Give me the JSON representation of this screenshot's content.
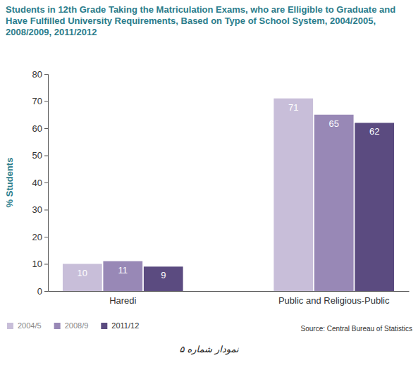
{
  "chart_data": {
    "type": "bar",
    "title": "Students in 12th Grade Taking the Matriculation Exams, who are Elligible to Graduate and Have Fulfilled University Requirements, Based on Type of School System, 2004/2005, 2008/2009, 2011/2012",
    "ylabel": "% Students",
    "categories": [
      "Haredi",
      "Public and Religious-Public"
    ],
    "series": [
      {
        "name": "2004/5",
        "color": "#c8bed9",
        "values": [
          10,
          71
        ]
      },
      {
        "name": "2008/9",
        "color": "#9888b6",
        "values": [
          11,
          65
        ]
      },
      {
        "name": "2011/12",
        "color": "#5b4b80",
        "values": [
          9,
          62
        ]
      }
    ],
    "ylim": [
      0,
      80
    ],
    "yticks": [
      0,
      10,
      20,
      30,
      40,
      50,
      60,
      70,
      80
    ],
    "grid": false,
    "data_labels": true,
    "legend": "bottom-left",
    "source": "Source: Central Bureau of Statistics",
    "caption": "نمودار شماره ۵"
  }
}
